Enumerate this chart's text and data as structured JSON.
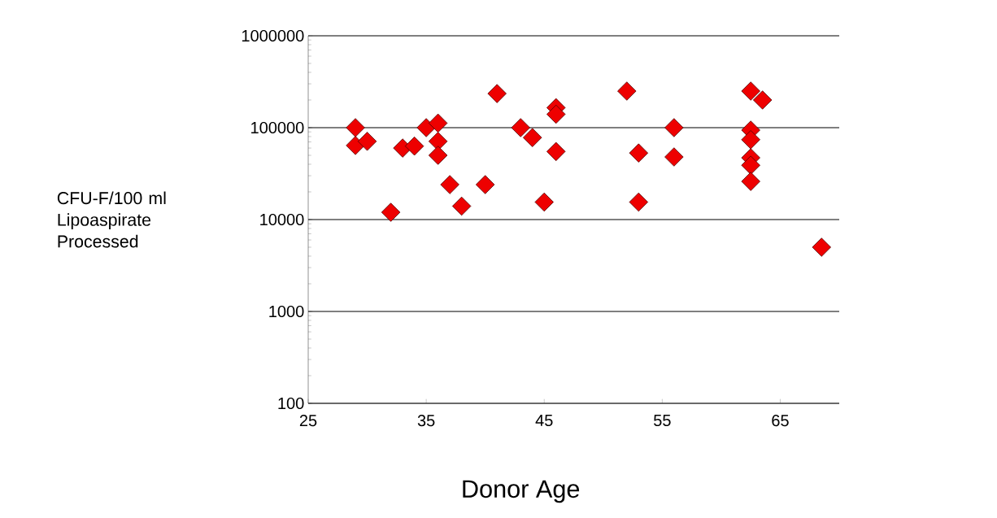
{
  "chart_data": {
    "type": "scatter",
    "xlabel": "Donor Age",
    "ylabel": "CFU-F/100 ml Lipoaspirate Processed",
    "series": [
      {
        "color": "#ee0000",
        "x": [
          29,
          29,
          30,
          32,
          33,
          34,
          35,
          36,
          36,
          36,
          37,
          38,
          40,
          41,
          43,
          44,
          45,
          46,
          46,
          46,
          52,
          53,
          53,
          56,
          56,
          62.5,
          63.5,
          62.5,
          62.5,
          62.5,
          62.5,
          62.5,
          68.5
        ],
        "values": [
          100000,
          64000,
          71000,
          12000,
          60000,
          63000,
          100000,
          112000,
          71000,
          50000,
          24000,
          14000,
          24000,
          235000,
          100000,
          78000,
          15500,
          165000,
          140000,
          55000,
          250000,
          53000,
          15500,
          100000,
          48000,
          250000,
          200000,
          94000,
          74000,
          47000,
          39000,
          26000,
          5000
        ]
      }
    ],
    "marker": "diamond",
    "line_style": "none",
    "log": "y",
    "grid": "y",
    "xlim": [
      25,
      70
    ],
    "xticks": [
      25,
      35,
      45,
      55,
      65
    ],
    "ylim": [
      100,
      1000000
    ],
    "yticks": [
      100,
      1000,
      10000,
      100000,
      1000000
    ]
  }
}
